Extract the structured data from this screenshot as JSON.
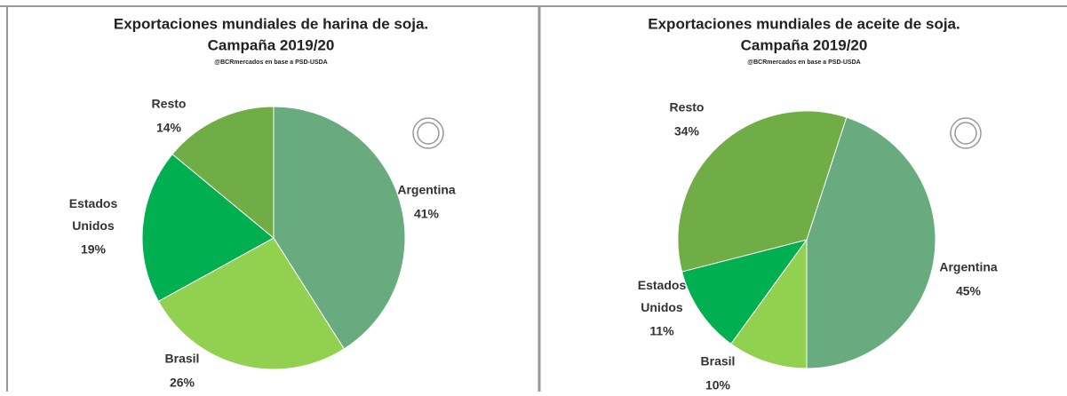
{
  "chart_data": [
    {
      "type": "pie",
      "title": [
        "Exportaciones mundiales de harina de soja.",
        "Campaña 2019/20"
      ],
      "subtitle": "@BCRmercados en base a PSD-USDA",
      "start_angle": 0,
      "categories": [
        "Argentina",
        "Brasil",
        "Estados Unidos",
        "Resto"
      ],
      "values": [
        41,
        26,
        19,
        14
      ],
      "value_labels": [
        "41%",
        "26%",
        "19%",
        "14%"
      ],
      "colors": [
        "#67ab7e",
        "#92d050",
        "#00b050",
        "#70ad47"
      ]
    },
    {
      "type": "pie",
      "title": [
        "Exportaciones mundiales de aceite de soja.",
        "Campaña 2019/20"
      ],
      "subtitle": "@BCRmercados en base a PSD-USDA",
      "start_angle": 18,
      "categories": [
        "Argentina",
        "Brasil",
        "Estados Unidos",
        "Resto"
      ],
      "values": [
        45,
        10,
        11,
        34
      ],
      "value_labels": [
        "45%",
        "10%",
        "11%",
        "34%"
      ],
      "colors": [
        "#67ab7e",
        "#92d050",
        "#00b050",
        "#70ad47"
      ]
    }
  ]
}
